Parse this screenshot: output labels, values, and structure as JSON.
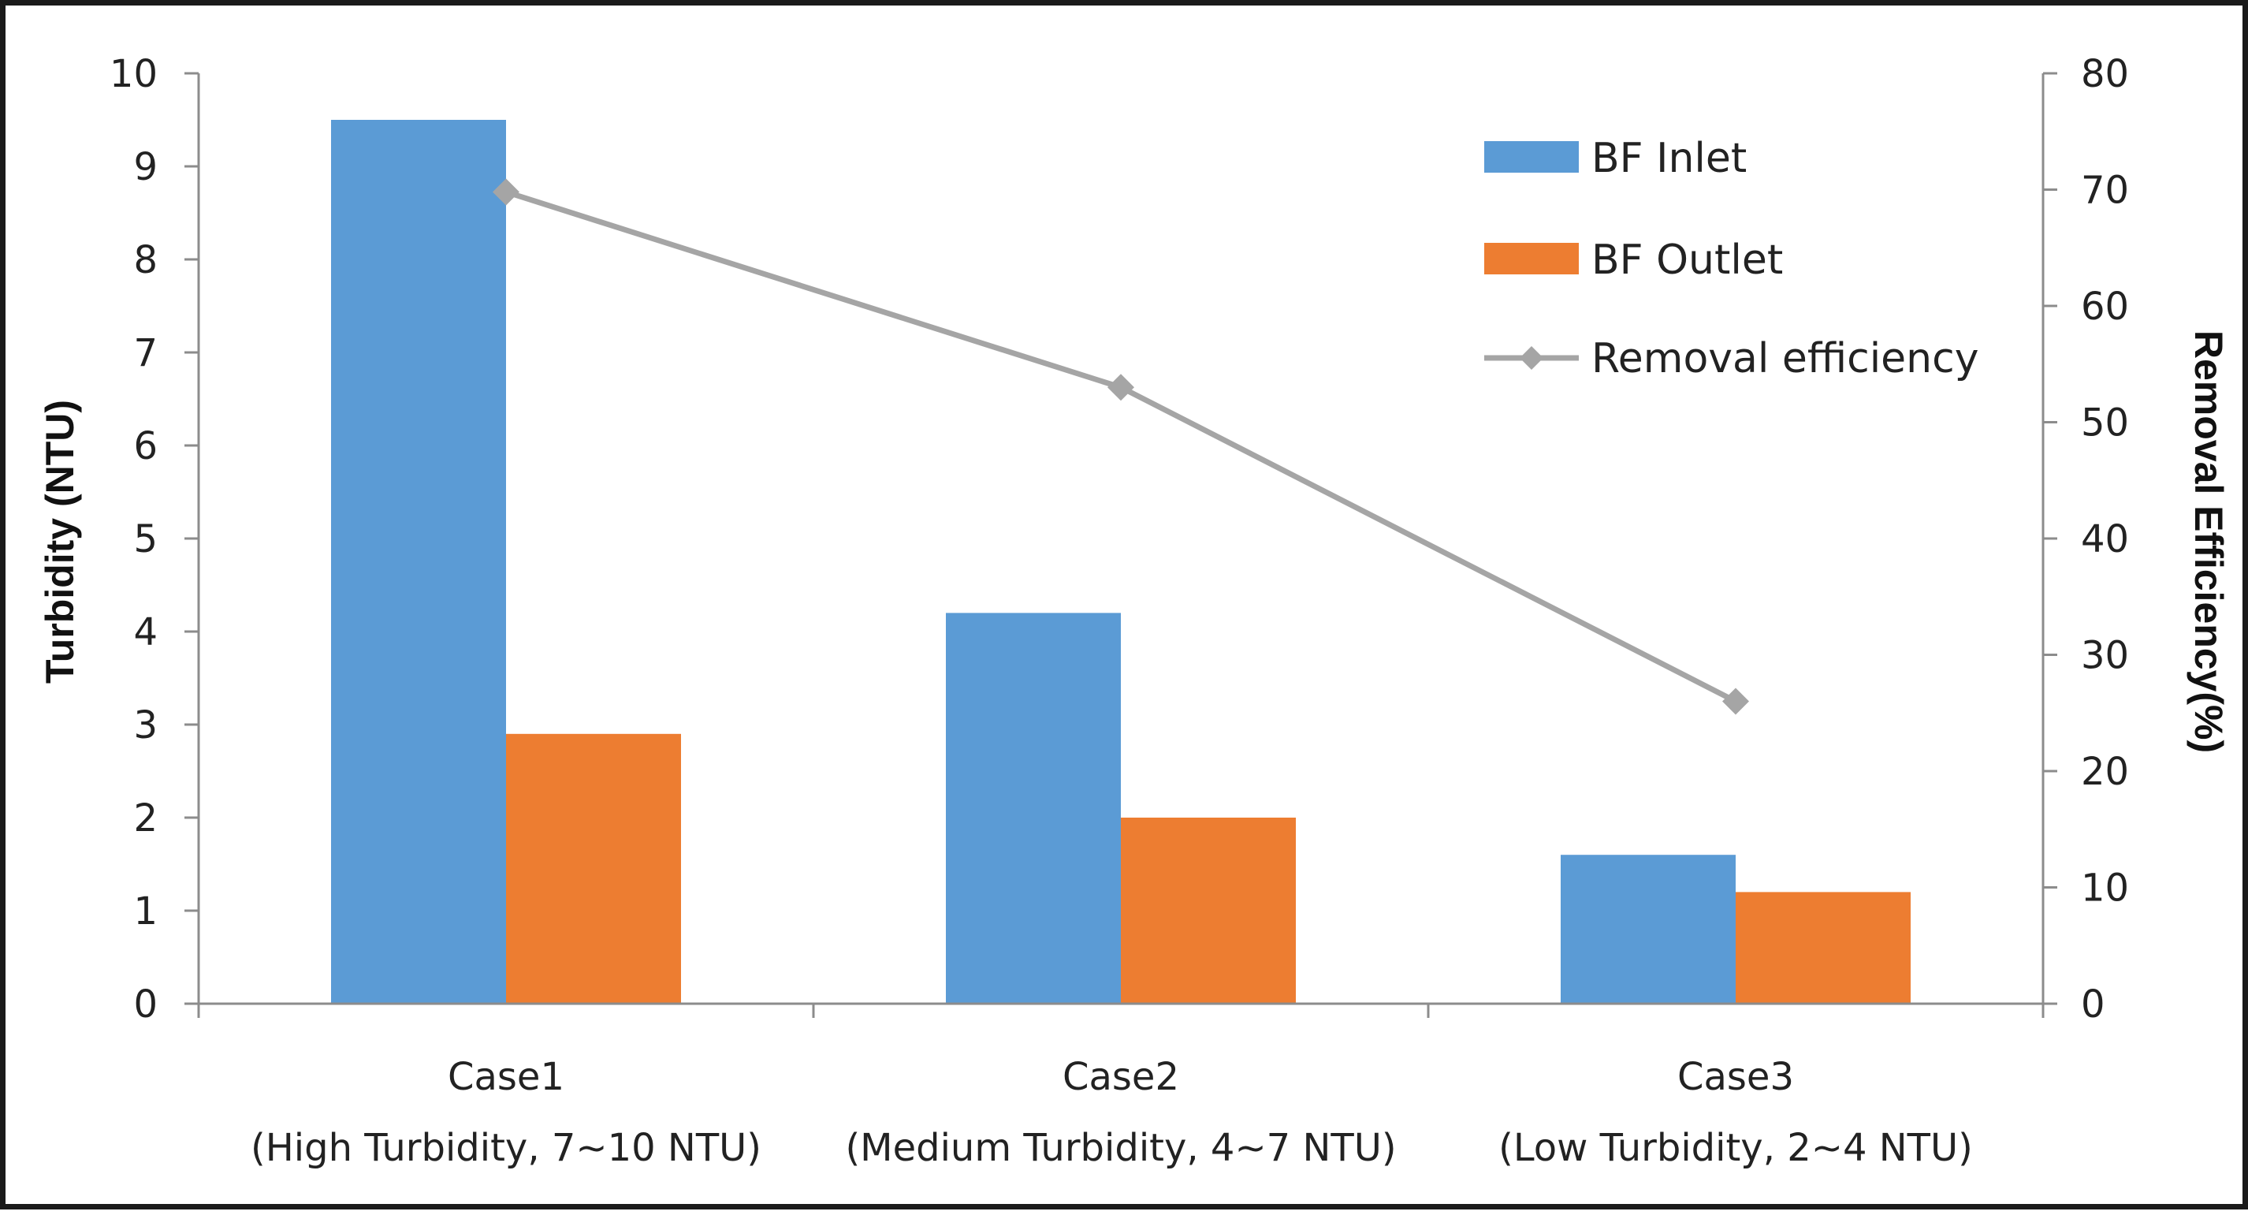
{
  "colors": {
    "inlet": "#5b9bd5",
    "outlet": "#ed7d31",
    "efficiency": "#a5a5a5",
    "axis": "#8c8c8c"
  },
  "chart_data": {
    "type": "bar",
    "categories": [
      [
        "Case1",
        "(High Turbidity, 7~10 NTU)"
      ],
      [
        "Case2",
        "(Medium Turbidity, 4~7 NTU)"
      ],
      [
        "Case3",
        "(Low Turbidity, 2~4 NTU)"
      ]
    ],
    "series": [
      {
        "name": "BF Inlet",
        "type": "bar",
        "axis": "left",
        "values": [
          9.5,
          4.2,
          1.6
        ]
      },
      {
        "name": "BF Outlet",
        "type": "bar",
        "axis": "right_none",
        "values": [
          2.9,
          2.0,
          1.2
        ]
      },
      {
        "name": "Removal efficiency",
        "type": "line",
        "axis": "right",
        "values": [
          69.8,
          53.0,
          26.0
        ]
      }
    ],
    "ylabel": "Turbidity (NTU)",
    "y2label": "Removal Efficiency(%)",
    "ylim": [
      0,
      10
    ],
    "y2lim": [
      0,
      80
    ],
    "yticks": [
      "0",
      "1",
      "2",
      "3",
      "4",
      "5",
      "6",
      "7",
      "8",
      "9",
      "10"
    ],
    "y2ticks": [
      "0",
      "10",
      "20",
      "30",
      "40",
      "50",
      "60",
      "70",
      "80"
    ],
    "legend_position": "top-right",
    "grid": false
  }
}
